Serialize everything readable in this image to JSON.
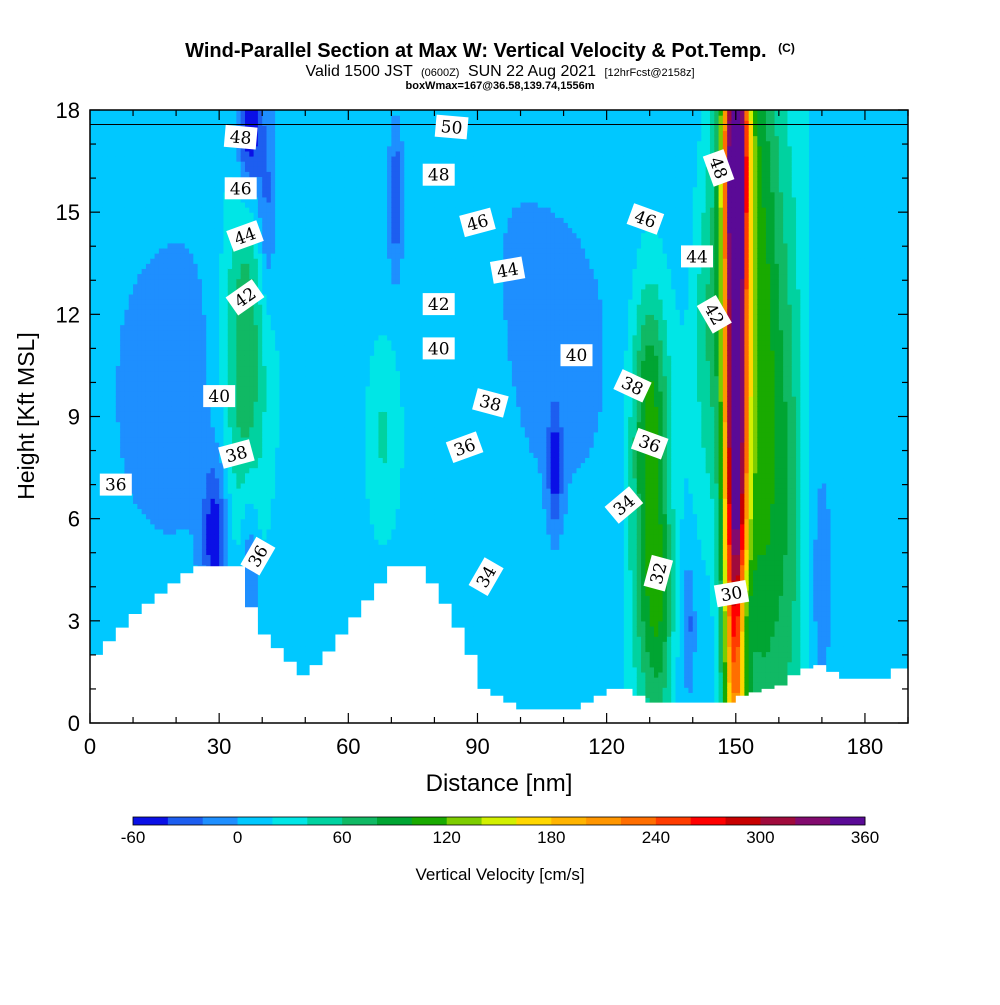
{
  "chart_data": {
    "type": "heatmap",
    "title": "Wind-Parallel Section at Max W: Vertical Velocity & Pot.Temp.",
    "title_mark": "(C)",
    "subtitle": {
      "main_prefix": "Valid 1500 JST",
      "zulu": "(0600Z)",
      "main_suffix": "SUN 22 Aug 2021",
      "forecast": "[12hrFcst@2158z]"
    },
    "box_info": "boxWmax=167@36.58,139.74,1556m",
    "xlabel": "Distance [nm]",
    "ylabel": "Height [Kft MSL]",
    "xlim": [
      0,
      190
    ],
    "ylim": [
      0,
      18
    ],
    "x_ticks": [
      0,
      30,
      60,
      90,
      120,
      150,
      180
    ],
    "y_ticks": [
      0,
      3,
      6,
      9,
      12,
      15,
      18
    ],
    "colorbar": {
      "label": "Vertical Velocity [cm/s]",
      "levels": [
        -60,
        -40,
        -20,
        0,
        20,
        40,
        60,
        80,
        100,
        120,
        140,
        160,
        180,
        200,
        220,
        240,
        260,
        280,
        300,
        320,
        340,
        360
      ],
      "tick_labels": [
        -60,
        0,
        60,
        120,
        180,
        240,
        300,
        360
      ],
      "colors": [
        "#0a10e6",
        "#1d5ef0",
        "#1e8fff",
        "#00c8ff",
        "#00e6e6",
        "#00d2a0",
        "#10b964",
        "#00a532",
        "#19aa00",
        "#7dcd00",
        "#d2f000",
        "#ffd700",
        "#ffb400",
        "#ff9600",
        "#ff6e00",
        "#ff3c00",
        "#ff0000",
        "#c80000",
        "#a00a3c",
        "#820a6e",
        "#5a0a96"
      ]
    },
    "theta_contours": {
      "units": "K",
      "levels": [
        30,
        31,
        32,
        33,
        34,
        35,
        36,
        37,
        38,
        39,
        40,
        41,
        42,
        43,
        44,
        45,
        46,
        47,
        48,
        49,
        50
      ],
      "labels": [
        {
          "text": "48",
          "x": 35,
          "y": 17.2,
          "rot": 5
        },
        {
          "text": "46",
          "x": 35,
          "y": 15.7,
          "rot": 0
        },
        {
          "text": "44",
          "x": 36,
          "y": 14.3,
          "rot": -20
        },
        {
          "text": "42",
          "x": 36,
          "y": 12.5,
          "rot": -35
        },
        {
          "text": "40",
          "x": 30,
          "y": 9.6,
          "rot": 0
        },
        {
          "text": "38",
          "x": 34,
          "y": 7.9,
          "rot": -15
        },
        {
          "text": "36",
          "x": 6,
          "y": 7.0,
          "rot": 0
        },
        {
          "text": "36",
          "x": 39,
          "y": 4.9,
          "rot": -60
        },
        {
          "text": "50",
          "x": 84,
          "y": 17.5,
          "rot": 5
        },
        {
          "text": "48",
          "x": 81,
          "y": 16.1,
          "rot": 0
        },
        {
          "text": "46",
          "x": 90,
          "y": 14.7,
          "rot": -15
        },
        {
          "text": "44",
          "x": 97,
          "y": 13.3,
          "rot": -10
        },
        {
          "text": "42",
          "x": 81,
          "y": 12.3,
          "rot": 0
        },
        {
          "text": "40",
          "x": 81,
          "y": 11.0,
          "rot": 0
        },
        {
          "text": "38",
          "x": 93,
          "y": 9.4,
          "rot": 15
        },
        {
          "text": "36",
          "x": 87,
          "y": 8.1,
          "rot": -20
        },
        {
          "text": "34",
          "x": 92,
          "y": 4.3,
          "rot": -60
        },
        {
          "text": "40",
          "x": 113,
          "y": 10.8,
          "rot": 0
        },
        {
          "text": "38",
          "x": 126,
          "y": 9.9,
          "rot": 25
        },
        {
          "text": "36",
          "x": 130,
          "y": 8.2,
          "rot": 20
        },
        {
          "text": "34",
          "x": 124,
          "y": 6.4,
          "rot": -40
        },
        {
          "text": "32",
          "x": 132,
          "y": 4.4,
          "rot": -75
        },
        {
          "text": "30",
          "x": 149,
          "y": 3.8,
          "rot": -10
        },
        {
          "text": "48",
          "x": 146,
          "y": 16.3,
          "rot": 70
        },
        {
          "text": "46",
          "x": 129,
          "y": 14.8,
          "rot": 20
        },
        {
          "text": "44",
          "x": 141,
          "y": 13.7,
          "rot": 0
        },
        {
          "text": "42",
          "x": 145,
          "y": 12.0,
          "rot": 60
        }
      ]
    },
    "terrain_profile": {
      "x": [
        0,
        3,
        6,
        9,
        12,
        15,
        18,
        21,
        24,
        27,
        30,
        33,
        36,
        39,
        42,
        45,
        48,
        51,
        54,
        57,
        60,
        63,
        66,
        69,
        72,
        75,
        78,
        81,
        84,
        87,
        90,
        93,
        96,
        99,
        102,
        105,
        108,
        111,
        114,
        117,
        120,
        123,
        126,
        129,
        132,
        135,
        138,
        141,
        144,
        147,
        150,
        153,
        156,
        159,
        162,
        165,
        168,
        171,
        174,
        177,
        180,
        183,
        186,
        190
      ],
      "y": [
        2.0,
        2.4,
        2.8,
        3.2,
        3.5,
        3.8,
        4.1,
        4.4,
        4.6,
        4.6,
        4.6,
        4.6,
        3.4,
        2.6,
        2.2,
        1.8,
        1.4,
        1.7,
        2.1,
        2.6,
        3.1,
        3.6,
        4.1,
        4.6,
        4.6,
        4.6,
        4.1,
        3.5,
        2.8,
        2.0,
        1.0,
        0.8,
        0.6,
        0.4,
        0.4,
        0.4,
        0.4,
        0.4,
        0.6,
        0.8,
        1.0,
        1.0,
        0.8,
        0.6,
        0.6,
        0.6,
        0.6,
        0.6,
        0.6,
        0.6,
        0.8,
        0.9,
        1.0,
        1.1,
        1.4,
        1.6,
        1.7,
        1.5,
        1.3,
        1.3,
        1.3,
        1.3,
        1.6,
        1.6
      ]
    },
    "w_features": [
      {
        "x": 150,
        "y": 10.5,
        "sx": 2.0,
        "sy": 9.0,
        "amp": 380
      },
      {
        "x": 150,
        "y": 16.8,
        "sx": 2.6,
        "sy": 2.2,
        "amp": 120
      },
      {
        "x": 156,
        "y": 10.0,
        "sx": 3.0,
        "sy": 8.0,
        "amp": 95
      },
      {
        "x": 162,
        "y": 7.5,
        "sx": 3.0,
        "sy": 6.0,
        "amp": 60
      },
      {
        "x": 130,
        "y": 5.5,
        "sx": 3.0,
        "sy": 4.0,
        "amp": 90
      },
      {
        "x": 133,
        "y": 3.0,
        "sx": 2.0,
        "sy": 2.5,
        "amp": 40
      },
      {
        "x": 144,
        "y": 12.0,
        "sx": 2.5,
        "sy": 4.0,
        "amp": 45
      },
      {
        "x": 36,
        "y": 11.0,
        "sx": 3.5,
        "sy": 4.0,
        "amp": 65
      },
      {
        "x": 68,
        "y": 8.5,
        "sx": 3.0,
        "sy": 2.0,
        "amp": 35
      },
      {
        "x": 130,
        "y": 10.0,
        "sx": 3.0,
        "sy": 2.0,
        "amp": 40
      },
      {
        "x": 37,
        "y": 17.5,
        "sx": 2.0,
        "sy": 1.6,
        "amp": -80
      },
      {
        "x": 41,
        "y": 15.0,
        "sx": 1.5,
        "sy": 2.0,
        "amp": -40
      },
      {
        "x": 29,
        "y": 5.5,
        "sx": 2.0,
        "sy": 1.5,
        "amp": -65
      },
      {
        "x": 37,
        "y": 4.8,
        "sx": 1.5,
        "sy": 1.8,
        "amp": -40
      },
      {
        "x": 71,
        "y": 15.5,
        "sx": 1.2,
        "sy": 1.6,
        "amp": -50
      },
      {
        "x": 108,
        "y": 7.5,
        "sx": 1.2,
        "sy": 1.2,
        "amp": -55
      },
      {
        "x": 152,
        "y": 3.0,
        "sx": 1.3,
        "sy": 1.5,
        "amp": -55
      },
      {
        "x": 139,
        "y": 3.0,
        "sx": 1.0,
        "sy": 1.2,
        "amp": -35
      },
      {
        "x": 170,
        "y": 4.0,
        "sx": 1.5,
        "sy": 2.0,
        "amp": -35
      },
      {
        "x": 20,
        "y": 10.0,
        "sx": 10.0,
        "sy": 4.0,
        "amp": -20
      },
      {
        "x": 105,
        "y": 12.0,
        "sx": 12.0,
        "sy": 4.0,
        "amp": -18
      }
    ]
  }
}
